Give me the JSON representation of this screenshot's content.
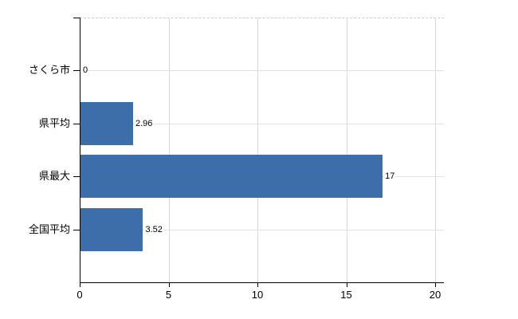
{
  "chart_data": {
    "type": "bar",
    "orientation": "horizontal",
    "title": "",
    "categories": [
      "さくら市",
      "県平均",
      "県最大",
      "全国平均"
    ],
    "values": [
      0,
      2.96,
      17,
      3.52
    ],
    "value_labels": [
      "0",
      "2.96",
      "17",
      "3.52"
    ],
    "x_tick_labels": [
      "0",
      "5",
      "10",
      "15",
      "20"
    ],
    "x_tick_values": [
      0,
      5,
      10,
      15,
      20
    ],
    "xlim": [
      0,
      20
    ],
    "grid": true,
    "legend": false,
    "colors": {
      "bar": "#3E6EA9",
      "vertical_gridline": "#d9d9d9",
      "horizontal_gridline": "#dde3dd",
      "axis": "#000000",
      "text": "#000000",
      "background": "#ffffff"
    }
  }
}
